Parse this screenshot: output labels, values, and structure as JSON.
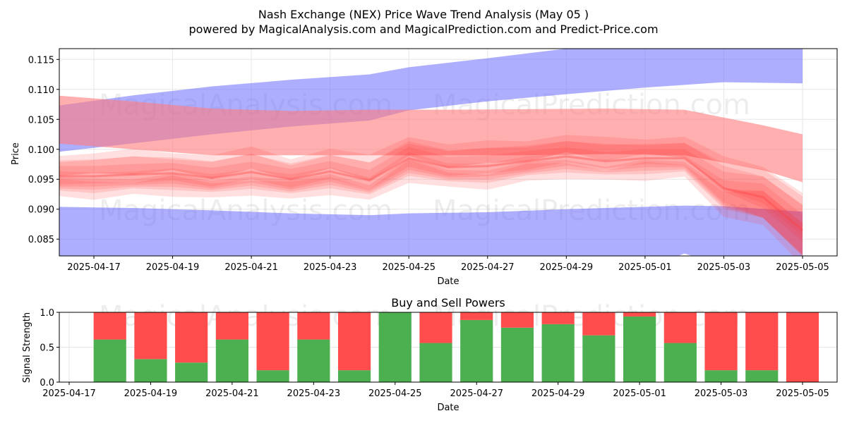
{
  "figure": {
    "title_line1": "Nash Exchange (NEX) Price Wave Trend Analysis (May 05 )",
    "title_line2": "powered by MagicalAnalysis.com and MagicalPrediction.com and Predict-Price.com",
    "watermarks": [
      "MagicalAnalysis.com",
      "MagicalPrediction.com"
    ]
  },
  "colors": {
    "upper_band": "#6b6bff",
    "lower_band": "#6b6bff",
    "forecast_band": "#ff7a7a",
    "price_waves": "#ff3b3b",
    "buy": "#4caf50",
    "sell": "#ff4d4d",
    "grid": "#e6e6e6"
  },
  "chart_data": [
    {
      "type": "area",
      "title": "",
      "xlabel": "Date",
      "ylabel": "Price",
      "ylim": [
        0.0822,
        0.1168
      ],
      "yticks": [
        0.085,
        0.09,
        0.095,
        0.1,
        0.105,
        0.11,
        0.115
      ],
      "ytick_labels": [
        "0.085",
        "0.090",
        "0.095",
        "0.100",
        "0.105",
        "0.110",
        "0.115"
      ],
      "xticks": [
        "2025-04-17",
        "2025-04-19",
        "2025-04-21",
        "2025-04-23",
        "2025-04-25",
        "2025-04-27",
        "2025-04-29",
        "2025-05-01",
        "2025-05-03",
        "2025-05-05"
      ],
      "grid": true,
      "series": [
        {
          "role": "upper_band",
          "x": [
            "2025-04-16",
            "2025-04-18",
            "2025-04-20",
            "2025-04-22",
            "2025-04-24",
            "2025-04-25",
            "2025-04-27",
            "2025-04-29",
            "2025-05-01",
            "2025-05-03",
            "2025-05-05"
          ],
          "top": [
            0.1072,
            0.109,
            0.1105,
            0.1116,
            0.1125,
            0.1137,
            0.1152,
            0.1168,
            0.1175,
            0.1178,
            0.118
          ],
          "bottom": [
            0.0995,
            0.101,
            0.1025,
            0.1038,
            0.1048,
            0.1065,
            0.108,
            0.1092,
            0.1103,
            0.1112,
            0.111
          ]
        },
        {
          "role": "lower_band",
          "x": [
            "2025-04-16",
            "2025-04-18",
            "2025-04-20",
            "2025-04-22",
            "2025-04-24",
            "2025-04-25",
            "2025-04-27",
            "2025-04-29",
            "2025-05-01",
            "2025-05-02",
            "2025-05-03",
            "2025-05-05"
          ],
          "top": [
            0.0904,
            0.0902,
            0.0898,
            0.0893,
            0.089,
            0.0893,
            0.0895,
            0.09,
            0.0904,
            0.0906,
            0.0905,
            0.0896
          ],
          "bottom": [
            0.08,
            0.08,
            0.08,
            0.08,
            0.08,
            0.08,
            0.08,
            0.08,
            0.08,
            0.0826,
            0.0805,
            0.08
          ]
        },
        {
          "role": "forecast_band",
          "x": [
            "2025-04-16",
            "2025-04-18",
            "2025-04-20",
            "2025-04-22",
            "2025-04-24",
            "2025-04-26",
            "2025-04-28",
            "2025-04-30",
            "2025-05-02",
            "2025-05-04",
            "2025-05-05"
          ],
          "top": [
            0.109,
            0.108,
            0.1068,
            0.1064,
            0.1066,
            0.1066,
            0.1067,
            0.1068,
            0.1066,
            0.104,
            0.1025
          ],
          "bottom": [
            0.101,
            0.1,
            0.099,
            0.099,
            0.099,
            0.099,
            0.099,
            0.0992,
            0.099,
            0.0965,
            0.0945
          ]
        },
        {
          "role": "price_waves",
          "x": [
            "2025-04-16",
            "2025-04-17",
            "2025-04-18",
            "2025-04-19",
            "2025-04-20",
            "2025-04-21",
            "2025-04-22",
            "2025-04-23",
            "2025-04-24",
            "2025-04-25",
            "2025-04-26",
            "2025-04-27",
            "2025-04-28",
            "2025-04-29",
            "2025-04-30",
            "2025-05-01",
            "2025-05-02",
            "2025-05-03",
            "2025-05-04",
            "2025-05-05"
          ],
          "center": [
            0.0955,
            0.0955,
            0.0958,
            0.096,
            0.0952,
            0.0962,
            0.095,
            0.0963,
            0.0948,
            0.0985,
            0.097,
            0.0972,
            0.098,
            0.0988,
            0.098,
            0.0985,
            0.0985,
            0.0935,
            0.092,
            0.0865
          ],
          "spread": [
            0.0025,
            0.0025,
            0.0025,
            0.0025,
            0.0025,
            0.0025,
            0.0025,
            0.0025,
            0.0025,
            0.0028,
            0.0025,
            0.0025,
            0.0025,
            0.0022,
            0.0022,
            0.0022,
            0.0022,
            0.004,
            0.005,
            0.006
          ]
        }
      ]
    },
    {
      "type": "bar",
      "title": "Buy and Sell Powers",
      "xlabel": "Date",
      "ylabel": "Signal Strength",
      "ylim": [
        0,
        1
      ],
      "yticks": [
        0.0,
        0.5,
        1.0
      ],
      "ytick_labels": [
        "0.0",
        "0.5",
        "1.0"
      ],
      "xticks": [
        "2025-04-17",
        "2025-04-19",
        "2025-04-21",
        "2025-04-23",
        "2025-04-25",
        "2025-04-27",
        "2025-04-29",
        "2025-05-01",
        "2025-05-03",
        "2025-05-05"
      ],
      "grid": true,
      "categories": [
        "2025-04-18",
        "2025-04-19",
        "2025-04-20",
        "2025-04-21",
        "2025-04-22",
        "2025-04-23",
        "2025-04-24",
        "2025-04-25",
        "2025-04-26",
        "2025-04-27",
        "2025-04-28",
        "2025-04-29",
        "2025-04-30",
        "2025-05-01",
        "2025-05-02",
        "2025-05-03",
        "2025-05-04",
        "2025-05-05"
      ],
      "series": [
        {
          "role": "buy",
          "values": [
            0.61,
            0.33,
            0.28,
            0.61,
            0.17,
            0.61,
            0.17,
            1.0,
            0.56,
            0.89,
            0.78,
            0.83,
            0.67,
            0.94,
            0.56,
            0.17,
            0.17,
            0.0
          ]
        },
        {
          "role": "sell",
          "values": [
            0.39,
            0.67,
            0.72,
            0.39,
            0.83,
            0.39,
            0.83,
            0.0,
            0.44,
            0.11,
            0.22,
            0.17,
            0.33,
            0.06,
            0.44,
            0.83,
            0.83,
            1.0
          ]
        }
      ]
    }
  ]
}
